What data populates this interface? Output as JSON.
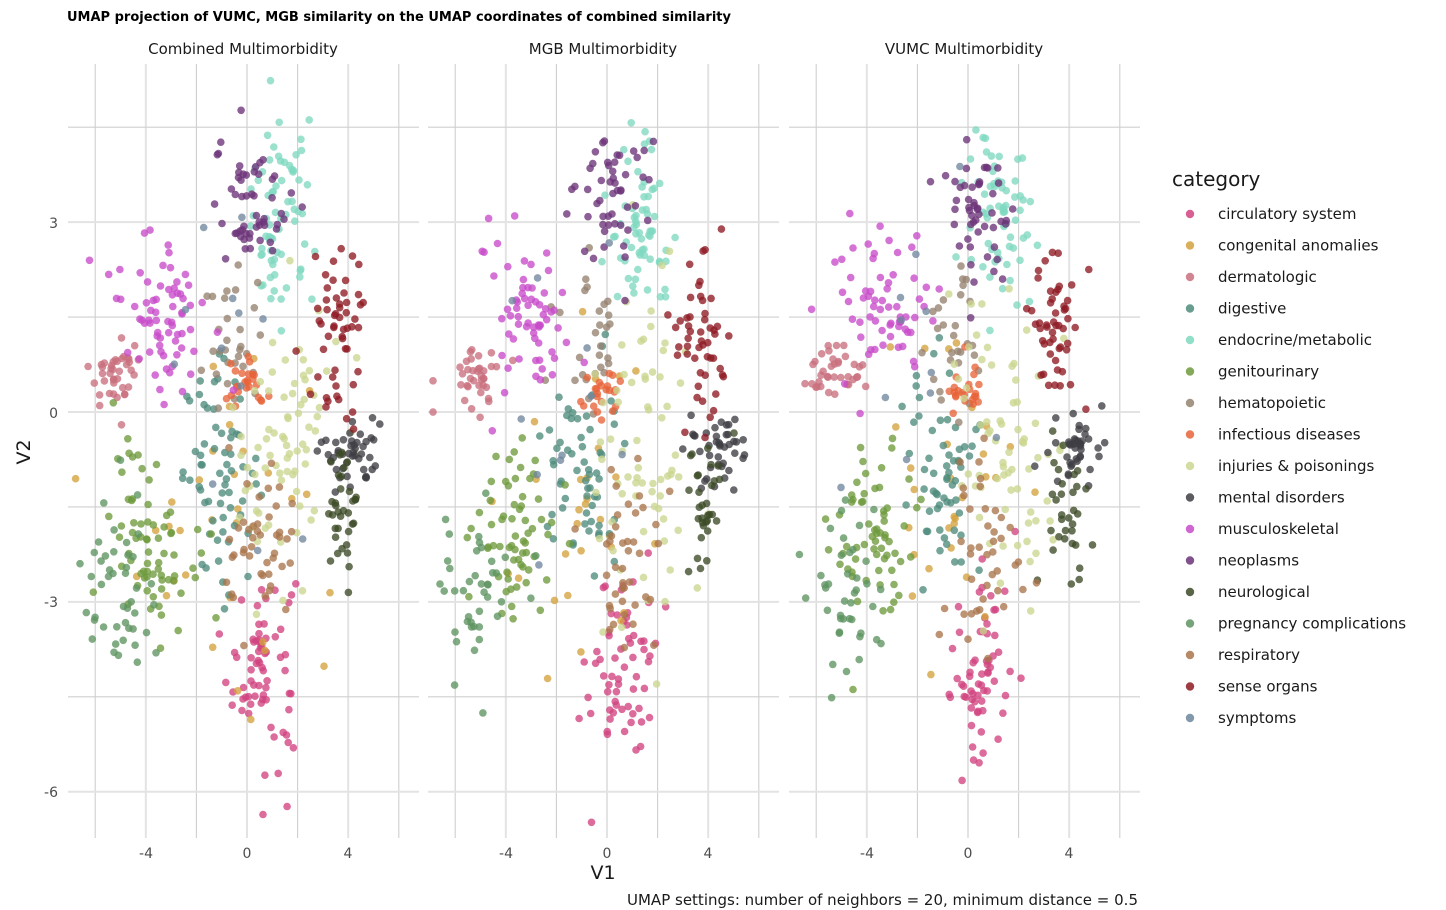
{
  "chart_data": {
    "type": "scatter",
    "title": "UMAP projection of VUMC, MGB similarity on the UMAP coordinates of combined similarity",
    "caption": "UMAP settings: number of neighbors = 20, minimum distance = 0.5",
    "xlabel": "V1",
    "ylabel": "V2",
    "xlim": [
      -7,
      6
    ],
    "ylim": [
      -6.7,
      5.4
    ],
    "x_ticks": [
      -4,
      0,
      4
    ],
    "x_tick_labels": [
      "-4",
      "0",
      "4"
    ],
    "y_ticks": [
      3,
      0,
      -3,
      -6
    ],
    "y_tick_labels": [
      "3",
      "0",
      "-3",
      "-6"
    ],
    "grid": true,
    "legend_position": "right",
    "legend_title": "category",
    "facets": [
      "Combined Multimorbidity",
      "MGB Multimorbidity",
      "VUMC Multimorbidity"
    ],
    "categories": [
      {
        "name": "circulatory system",
        "color": "#D1437F",
        "center": [
          0.6,
          -4.0
        ],
        "spread": [
          0.9,
          1.1
        ],
        "n": 70
      },
      {
        "name": "congenital anomalies",
        "color": "#D4A13E",
        "center": [
          -1.0,
          -1.6
        ],
        "spread": [
          2.2,
          2.0
        ],
        "n": 32
      },
      {
        "name": "dermatologic",
        "color": "#C9707E",
        "center": [
          -5.2,
          0.6
        ],
        "spread": [
          0.7,
          0.35
        ],
        "n": 40
      },
      {
        "name": "digestive",
        "color": "#4E8C7C",
        "center": [
          -1.0,
          -1.0
        ],
        "spread": [
          1.0,
          1.1
        ],
        "n": 65
      },
      {
        "name": "endocrine/metabolic",
        "color": "#7FD9C0",
        "center": [
          1.3,
          3.0
        ],
        "spread": [
          0.9,
          1.0
        ],
        "n": 70
      },
      {
        "name": "genitourinary",
        "color": "#6E9A3C",
        "center": [
          -3.7,
          -1.9
        ],
        "spread": [
          1.1,
          1.0
        ],
        "n": 70
      },
      {
        "name": "hematopoietic",
        "color": "#958270",
        "center": [
          -0.6,
          1.1
        ],
        "spread": [
          0.8,
          0.8
        ],
        "n": 30
      },
      {
        "name": "infectious diseases",
        "color": "#E8643A",
        "center": [
          -0.1,
          0.3
        ],
        "spread": [
          0.6,
          0.3
        ],
        "n": 25
      },
      {
        "name": "injuries & poisonings",
        "color": "#CCD690",
        "center": [
          1.5,
          -0.5
        ],
        "spread": [
          1.4,
          1.6
        ],
        "n": 75
      },
      {
        "name": "mental disorders",
        "color": "#3E3E44",
        "center": [
          4.2,
          -0.6
        ],
        "spread": [
          0.8,
          0.4
        ],
        "n": 45
      },
      {
        "name": "musculoskeletal",
        "color": "#C84BC9",
        "center": [
          -3.4,
          1.6
        ],
        "spread": [
          1.3,
          0.8
        ],
        "n": 70
      },
      {
        "name": "neoplasms",
        "color": "#6B3379",
        "center": [
          0.2,
          3.3
        ],
        "spread": [
          1.0,
          0.7
        ],
        "n": 55
      },
      {
        "name": "neurological",
        "color": "#3C4A26",
        "center": [
          3.8,
          -1.6
        ],
        "spread": [
          0.6,
          0.8
        ],
        "n": 35
      },
      {
        "name": "pregnancy complications",
        "color": "#5E9460",
        "center": [
          -5.0,
          -2.9
        ],
        "spread": [
          1.0,
          0.9
        ],
        "n": 45
      },
      {
        "name": "respiratory",
        "color": "#A9744C",
        "center": [
          0.6,
          -2.2
        ],
        "spread": [
          1.0,
          1.0
        ],
        "n": 45
      },
      {
        "name": "sense organs",
        "color": "#8E1A22",
        "center": [
          3.6,
          1.2
        ],
        "spread": [
          0.7,
          1.0
        ],
        "n": 55
      },
      {
        "name": "symptoms",
        "color": "#6F869D",
        "center": [
          -1.5,
          0.7
        ],
        "spread": [
          2.2,
          1.8
        ],
        "n": 12
      }
    ]
  }
}
